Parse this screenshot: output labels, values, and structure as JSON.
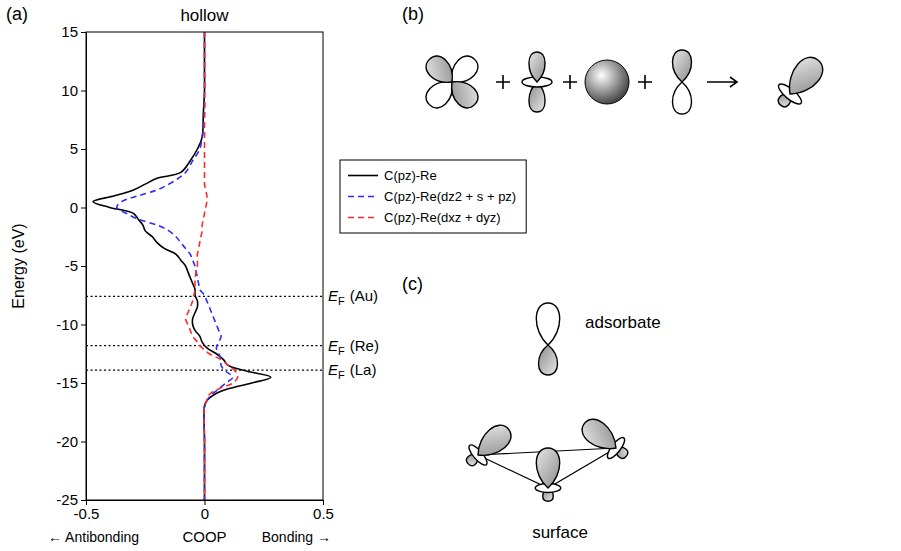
{
  "chart_data": {
    "type": "line",
    "title": "hollow",
    "xlabel": "COOP",
    "ylabel": "Energy (eV)",
    "xlabel_notes": [
      "← Antibonding",
      "Bonding →"
    ],
    "xlim": [
      -0.5,
      0.5
    ],
    "xticks": [
      -0.5,
      0,
      0.5
    ],
    "ylim": [
      -25,
      15
    ],
    "yticks": [
      -25,
      -20,
      -15,
      -10,
      -5,
      0,
      5,
      10,
      15
    ],
    "grid": false,
    "legend": "right",
    "y": [
      15,
      12,
      10,
      8,
      6,
      5,
      4,
      3,
      2.5,
      2,
      1.5,
      1,
      0.5,
      0,
      -0.5,
      -1,
      -1.5,
      -2,
      -2.5,
      -3,
      -3.5,
      -4,
      -4.5,
      -5,
      -5.5,
      -6,
      -6.5,
      -7,
      -7.5,
      -8,
      -8.5,
      -9,
      -9.5,
      -10,
      -10.5,
      -11,
      -11.5,
      -12,
      -12.5,
      -13,
      -13.5,
      -14,
      -14.5,
      -15,
      -15.5,
      -16,
      -16.5,
      -17,
      -20,
      -25
    ],
    "series": [
      {
        "name": "C(pz)-Re",
        "color": "#000000",
        "line_style": "solid",
        "values": [
          0,
          0,
          0,
          -0.005,
          -0.01,
          -0.03,
          -0.06,
          -0.1,
          -0.2,
          -0.25,
          -0.3,
          -0.38,
          -0.47,
          -0.4,
          -0.3,
          -0.28,
          -0.26,
          -0.25,
          -0.22,
          -0.2,
          -0.17,
          -0.12,
          -0.1,
          -0.08,
          -0.07,
          -0.06,
          -0.05,
          -0.04,
          -0.04,
          -0.03,
          -0.03,
          -0.04,
          -0.05,
          -0.05,
          -0.04,
          -0.02,
          -0.01,
          0.01,
          0.05,
          0.08,
          0.1,
          0.18,
          0.28,
          0.2,
          0.1,
          0.04,
          0.01,
          0,
          0,
          0
        ]
      },
      {
        "name": "C(pz)-Re(dz2 + s + pz)",
        "color": "#2b2bff",
        "line_style": "dashed",
        "values": [
          0,
          0,
          0,
          0,
          -0.01,
          -0.02,
          -0.05,
          -0.08,
          -0.11,
          -0.15,
          -0.2,
          -0.28,
          -0.35,
          -0.37,
          -0.33,
          -0.28,
          -0.2,
          -0.15,
          -0.12,
          -0.1,
          -0.08,
          -0.06,
          -0.05,
          -0.04,
          -0.035,
          -0.03,
          -0.025,
          -0.02,
          0,
          0.01,
          0.02,
          0.03,
          0.04,
          0.05,
          0.06,
          0.07,
          0.06,
          0.05,
          0.06,
          0.07,
          0.07,
          0.09,
          0.12,
          0.09,
          0.06,
          0.03,
          0.01,
          0,
          0,
          0
        ]
      },
      {
        "name": "C(pz)-Re(dxz + dyz)",
        "color": "#ff2b2b",
        "line_style": "dashed",
        "values": [
          0,
          0,
          0,
          0,
          0,
          0,
          0,
          0,
          0,
          0,
          0.005,
          0.01,
          0.01,
          0.005,
          0,
          -0.005,
          -0.01,
          -0.01,
          -0.015,
          -0.02,
          -0.025,
          -0.03,
          -0.03,
          -0.03,
          -0.035,
          -0.04,
          -0.04,
          -0.04,
          -0.045,
          -0.05,
          -0.06,
          -0.07,
          -0.08,
          -0.07,
          -0.06,
          -0.05,
          -0.03,
          -0.01,
          0.02,
          0.07,
          0.1,
          0.13,
          0.14,
          0.12,
          0.06,
          0.02,
          0.01,
          0,
          0,
          0
        ]
      }
    ],
    "annotations": [
      {
        "y": -7.6,
        "symbol": "E",
        "subscript": "F",
        "text": "(Au)"
      },
      {
        "y": -11.8,
        "symbol": "E",
        "subscript": "F",
        "text": "(Re)"
      },
      {
        "y": -13.9,
        "symbol": "E",
        "subscript": "F",
        "text": "(La)"
      }
    ]
  },
  "figure": {
    "panel_labels": [
      "(a)",
      "(b)",
      "(c)"
    ],
    "diagram_labels": [
      "adsorbate",
      "surface"
    ]
  }
}
